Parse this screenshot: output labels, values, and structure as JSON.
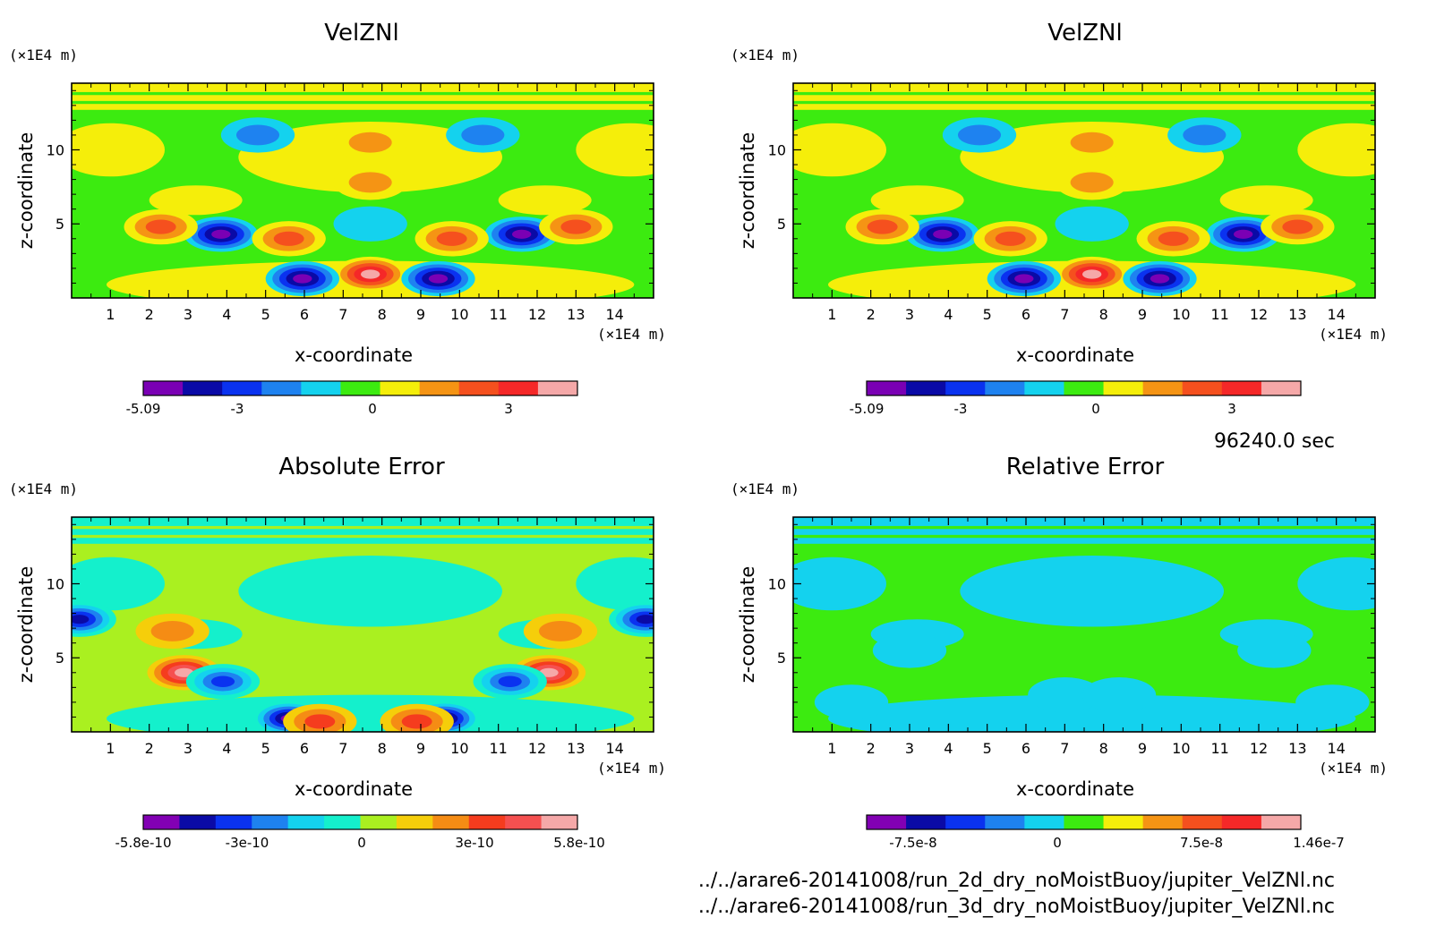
{
  "time_label": "96240.0 sec",
  "files": [
    "../../arare6-20141008/run_2d_dry_noMoistBuoy/jupiter_VelZNl.nc",
    "../../arare6-20141008/run_3d_dry_noMoistBuoy/jupiter_VelZNl.nc"
  ],
  "chart_data": [
    {
      "type": "heatmap",
      "title": "VelZNl",
      "xlabel": "x-coordinate",
      "ylabel": "z-coordinate",
      "x_unit": "(×1E4 m)",
      "y_unit": "(×1E4 m)",
      "xlim": [
        0,
        15
      ],
      "ylim": [
        0,
        14.5
      ],
      "x_ticks": [
        1,
        2,
        3,
        4,
        5,
        6,
        7,
        8,
        9,
        10,
        11,
        12,
        13,
        14
      ],
      "y_ticks": [
        5,
        10
      ],
      "colorbar": {
        "colors": [
          "#7a00b4",
          "#0a0aa6",
          "#0a32f0",
          "#1e82f0",
          "#14d2ee",
          "#3ceb10",
          "#f5ee0a",
          "#f59414",
          "#f5501e",
          "#f52828",
          "#f5a8a8"
        ],
        "tick_labels": [
          "-5.09",
          "-3",
          "0",
          "3"
        ]
      },
      "features": [
        {
          "x": 7.7,
          "z": 1.6,
          "value": 4.5
        },
        {
          "x": 5.95,
          "z": 1.3,
          "value": -4.6
        },
        {
          "x": 9.45,
          "z": 1.3,
          "value": -4.6
        },
        {
          "x": 3.85,
          "z": 4.3,
          "value": -4.6
        },
        {
          "x": 11.6,
          "z": 4.3,
          "value": -4.6
        },
        {
          "x": 2.3,
          "z": 4.8,
          "value": 3.0
        },
        {
          "x": 13.0,
          "z": 4.8,
          "value": 3.0
        },
        {
          "x": 5.6,
          "z": 4.0,
          "value": 2.8
        },
        {
          "x": 9.8,
          "z": 4.0,
          "value": 2.8
        },
        {
          "x": 7.7,
          "z": 5.0,
          "value": -1.0
        },
        {
          "x": 7.7,
          "z": 7.8,
          "value": 2.4
        },
        {
          "x": 4.8,
          "z": 11.0,
          "value": -2.2
        },
        {
          "x": 10.6,
          "z": 11.0,
          "value": -2.2
        },
        {
          "x": 7.7,
          "z": 10.5,
          "value": 1.5
        }
      ]
    },
    {
      "type": "heatmap",
      "title": "VelZNl",
      "xlabel": "x-coordinate",
      "ylabel": "z-coordinate",
      "x_unit": "(×1E4 m)",
      "y_unit": "(×1E4 m)",
      "xlim": [
        0,
        15
      ],
      "ylim": [
        0,
        14.5
      ],
      "x_ticks": [
        1,
        2,
        3,
        4,
        5,
        6,
        7,
        8,
        9,
        10,
        11,
        12,
        13,
        14
      ],
      "y_ticks": [
        5,
        10
      ],
      "colorbar": {
        "colors": [
          "#7a00b4",
          "#0a0aa6",
          "#0a32f0",
          "#1e82f0",
          "#14d2ee",
          "#3ceb10",
          "#f5ee0a",
          "#f59414",
          "#f5501e",
          "#f52828",
          "#f5a8a8"
        ],
        "tick_labels": [
          "-5.09",
          "-3",
          "0",
          "3"
        ]
      },
      "features": [
        {
          "x": 7.7,
          "z": 1.6,
          "value": 4.5
        },
        {
          "x": 5.95,
          "z": 1.3,
          "value": -4.6
        },
        {
          "x": 9.45,
          "z": 1.3,
          "value": -4.6
        },
        {
          "x": 3.85,
          "z": 4.3,
          "value": -4.6
        },
        {
          "x": 11.6,
          "z": 4.3,
          "value": -4.6
        },
        {
          "x": 2.3,
          "z": 4.8,
          "value": 3.0
        },
        {
          "x": 13.0,
          "z": 4.8,
          "value": 3.0
        },
        {
          "x": 5.6,
          "z": 4.0,
          "value": 2.8
        },
        {
          "x": 9.8,
          "z": 4.0,
          "value": 2.8
        },
        {
          "x": 7.7,
          "z": 5.0,
          "value": -1.0
        },
        {
          "x": 7.7,
          "z": 7.8,
          "value": 2.4
        },
        {
          "x": 4.8,
          "z": 11.0,
          "value": -2.2
        },
        {
          "x": 10.6,
          "z": 11.0,
          "value": -2.2
        },
        {
          "x": 7.7,
          "z": 10.5,
          "value": 1.5
        }
      ]
    },
    {
      "type": "heatmap",
      "title": "Absolute Error",
      "xlabel": "x-coordinate",
      "ylabel": "z-coordinate",
      "x_unit": "(×1E4 m)",
      "y_unit": "(×1E4 m)",
      "xlim": [
        0,
        15
      ],
      "ylim": [
        0,
        14.5
      ],
      "x_ticks": [
        1,
        2,
        3,
        4,
        5,
        6,
        7,
        8,
        9,
        10,
        11,
        12,
        13,
        14
      ],
      "y_ticks": [
        5,
        10
      ],
      "colorbar": {
        "colors": [
          "#8200b4",
          "#0a0aa6",
          "#0a32f0",
          "#1e82f0",
          "#14d2ee",
          "#14f0cc",
          "#aaf020",
          "#f5ce0a",
          "#f58c14",
          "#f53c1e",
          "#f55050",
          "#f5a8a8"
        ],
        "tick_labels": [
          "-5.8e-10",
          "-3e-10",
          "0",
          "3e-10",
          "5.8e-10"
        ]
      },
      "features": [
        {
          "x": 5.6,
          "z": 0.9,
          "value": -5.5
        },
        {
          "x": 9.6,
          "z": 0.9,
          "value": -5.5
        },
        {
          "x": 6.4,
          "z": 0.7,
          "value": 3.5
        },
        {
          "x": 8.9,
          "z": 0.7,
          "value": 3.5
        },
        {
          "x": 2.9,
          "z": 4.0,
          "value": 5.0
        },
        {
          "x": 12.3,
          "z": 4.0,
          "value": 5.0
        },
        {
          "x": 3.9,
          "z": 3.4,
          "value": -3.5
        },
        {
          "x": 11.3,
          "z": 3.4,
          "value": -3.5
        },
        {
          "x": 0.2,
          "z": 7.6,
          "value": -3.8
        },
        {
          "x": 14.8,
          "z": 7.6,
          "value": -3.8
        },
        {
          "x": 2.6,
          "z": 6.8,
          "value": 2.0
        },
        {
          "x": 12.6,
          "z": 6.8,
          "value": 2.0
        }
      ]
    },
    {
      "type": "heatmap",
      "title": "Relative Error",
      "xlabel": "x-coordinate",
      "ylabel": "z-coordinate",
      "x_unit": "(×1E4 m)",
      "y_unit": "(×1E4 m)",
      "xlim": [
        0,
        15
      ],
      "ylim": [
        0,
        14.5
      ],
      "x_ticks": [
        1,
        2,
        3,
        4,
        5,
        6,
        7,
        8,
        9,
        10,
        11,
        12,
        13,
        14
      ],
      "y_ticks": [
        5,
        10
      ],
      "colorbar": {
        "colors": [
          "#8200b4",
          "#0a0aa6",
          "#0a32f0",
          "#1e82f0",
          "#14d2ee",
          "#3ceb10",
          "#f5ee0a",
          "#f59414",
          "#f5501e",
          "#f52828",
          "#f5a8a8"
        ],
        "tick_labels": [
          "-7.5e-8",
          "0",
          "7.5e-8",
          "1.46e-7"
        ]
      },
      "features": [
        {
          "x": 7.7,
          "z": 9.0,
          "value": -1.0
        },
        {
          "x": 3.0,
          "z": 5.5,
          "value": -1.0
        },
        {
          "x": 12.4,
          "z": 5.5,
          "value": -1.0
        },
        {
          "x": 7.0,
          "z": 2.5,
          "value": -1.0
        },
        {
          "x": 8.4,
          "z": 2.5,
          "value": -1.0
        },
        {
          "x": 1.5,
          "z": 2.0,
          "value": -1.0
        },
        {
          "x": 13.9,
          "z": 2.0,
          "value": -1.0
        }
      ]
    }
  ]
}
